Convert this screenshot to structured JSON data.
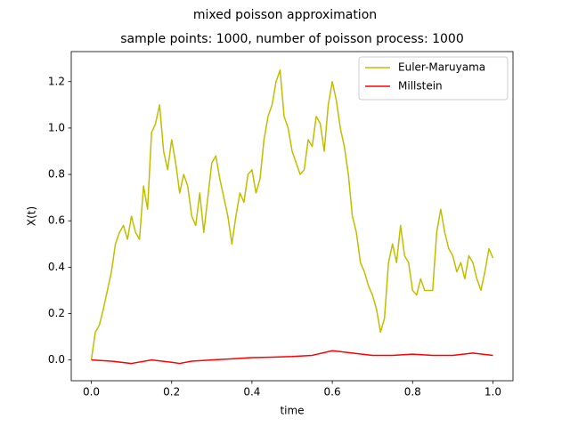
{
  "chart_data": {
    "type": "line",
    "title": "mixed poisson approximation",
    "subtitle": "sample points: 1000, number of poisson process: 1000",
    "x_label": "time",
    "y_label": "X(t)",
    "xlim": [
      -0.05,
      1.05
    ],
    "ylim": [
      -0.0895,
      1.3295
    ],
    "xticks": [
      {
        "value": 0,
        "label": "0.0"
      },
      0.2,
      0.4,
      0.6,
      0.8,
      {
        "value": 1,
        "label": "1.0"
      }
    ],
    "yticks": [
      {
        "value": 0,
        "label": "0.0"
      },
      0.2,
      0.4,
      0.6,
      0.8,
      {
        "value": 1,
        "label": "1.0"
      },
      1.2
    ],
    "legend": "upper right",
    "series": [
      {
        "name": "Euler-Maruyama",
        "color": "#bfbf00",
        "x": [
          0,
          0.01,
          0.02,
          0.03,
          0.04,
          0.05,
          0.06,
          0.07,
          0.08,
          0.09,
          0.1,
          0.11,
          0.12,
          0.13,
          0.14,
          0.15,
          0.16,
          0.17,
          0.18,
          0.19,
          0.2,
          0.21,
          0.22,
          0.23,
          0.24,
          0.25,
          0.26,
          0.27,
          0.28,
          0.29,
          0.3,
          0.31,
          0.32,
          0.33,
          0.34,
          0.35,
          0.36,
          0.37,
          0.38,
          0.39,
          0.4,
          0.41,
          0.42,
          0.43,
          0.44,
          0.45,
          0.46,
          0.47,
          0.48,
          0.49,
          0.5,
          0.51,
          0.52,
          0.53,
          0.54,
          0.55,
          0.56,
          0.57,
          0.58,
          0.59,
          0.6,
          0.61,
          0.62,
          0.63,
          0.64,
          0.65,
          0.66,
          0.67,
          0.68,
          0.69,
          0.7,
          0.71,
          0.72,
          0.73,
          0.74,
          0.75,
          0.76,
          0.77,
          0.78,
          0.79,
          0.8,
          0.81,
          0.82,
          0.83,
          0.84,
          0.85,
          0.86,
          0.87,
          0.88,
          0.89,
          0.9,
          0.91,
          0.92,
          0.93,
          0.94,
          0.95,
          0.96,
          0.97,
          0.98,
          0.99,
          1
        ],
        "values": [
          0,
          0.12,
          0.15,
          0.22,
          0.3,
          0.38,
          0.5,
          0.55,
          0.58,
          0.52,
          0.62,
          0.55,
          0.52,
          0.75,
          0.65,
          0.98,
          1.02,
          1.1,
          0.9,
          0.82,
          0.95,
          0.85,
          0.72,
          0.8,
          0.75,
          0.62,
          0.58,
          0.72,
          0.55,
          0.7,
          0.85,
          0.88,
          0.78,
          0.7,
          0.62,
          0.5,
          0.62,
          0.72,
          0.68,
          0.8,
          0.82,
          0.72,
          0.78,
          0.95,
          1.05,
          1.1,
          1.2,
          1.25,
          1.05,
          1,
          0.9,
          0.85,
          0.8,
          0.82,
          0.95,
          0.92,
          1.05,
          1.02,
          0.9,
          1.1,
          1.2,
          1.12,
          1,
          0.92,
          0.8,
          0.62,
          0.55,
          0.42,
          0.38,
          0.32,
          0.28,
          0.22,
          0.12,
          0.18,
          0.42,
          0.5,
          0.42,
          0.58,
          0.45,
          0.42,
          0.3,
          0.28,
          0.35,
          0.3,
          0.3,
          0.3,
          0.55,
          0.65,
          0.55,
          0.48,
          0.45,
          0.38,
          0.42,
          0.35,
          0.45,
          0.42,
          0.35,
          0.3,
          0.38,
          0.48,
          0.44
        ]
      },
      {
        "name": "Millstein",
        "color": "#ff0000",
        "x": [
          0,
          0.05,
          0.1,
          0.15,
          0.2,
          0.22,
          0.25,
          0.3,
          0.35,
          0.4,
          0.45,
          0.5,
          0.55,
          0.6,
          0.65,
          0.7,
          0.75,
          0.8,
          0.85,
          0.9,
          0.95,
          1
        ],
        "values": [
          0,
          -0.005,
          -0.015,
          0,
          -0.01,
          -0.015,
          -0.005,
          0,
          0.005,
          0.01,
          0.012,
          0.015,
          0.02,
          0.04,
          0.03,
          0.02,
          0.02,
          0.025,
          0.02,
          0.02,
          0.03,
          0.02
        ]
      }
    ]
  }
}
